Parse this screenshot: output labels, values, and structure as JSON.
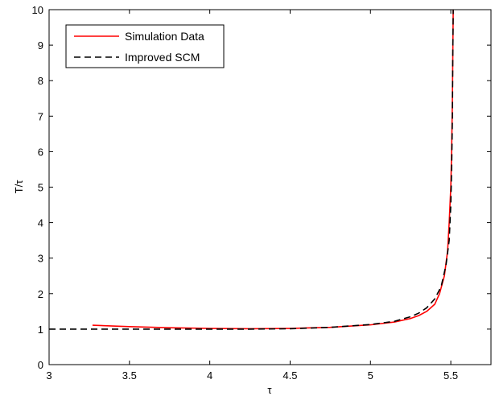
{
  "chart_data": {
    "type": "line",
    "title": "",
    "xlabel": "τ",
    "ylabel": "T/τ",
    "xlim": [
      3,
      5.75
    ],
    "ylim": [
      0,
      10
    ],
    "xticks": [
      3,
      3.5,
      4,
      4.5,
      5,
      5.5
    ],
    "xtick_labels": [
      "3",
      "3.5",
      "4",
      "4.5",
      "5",
      "5.5"
    ],
    "yticks": [
      0,
      1,
      2,
      3,
      4,
      5,
      6,
      7,
      8,
      9,
      10
    ],
    "ytick_labels": [
      "0",
      "1",
      "2",
      "3",
      "4",
      "5",
      "6",
      "7",
      "8",
      "9",
      "10"
    ],
    "grid": false,
    "legend": {
      "placement": "top-left"
    },
    "series": [
      {
        "name": "Simulation Data",
        "color": "#ff0000",
        "style": "solid",
        "points": [
          [
            3.27,
            1.11
          ],
          [
            3.5,
            1.07
          ],
          [
            3.75,
            1.04
          ],
          [
            4.0,
            1.02
          ],
          [
            4.25,
            1.01
          ],
          [
            4.5,
            1.02
          ],
          [
            4.75,
            1.05
          ],
          [
            5.0,
            1.12
          ],
          [
            5.15,
            1.2
          ],
          [
            5.25,
            1.3
          ],
          [
            5.3,
            1.38
          ],
          [
            5.35,
            1.5
          ],
          [
            5.4,
            1.7
          ],
          [
            5.43,
            2.0
          ],
          [
            5.46,
            2.5
          ],
          [
            5.48,
            3.2
          ],
          [
            5.49,
            4.0
          ],
          [
            5.5,
            5.0
          ],
          [
            5.505,
            6.0
          ],
          [
            5.51,
            7.5
          ],
          [
            5.513,
            9.0
          ],
          [
            5.515,
            10.0
          ]
        ]
      },
      {
        "name": "Improved SCM",
        "color": "#000000",
        "style": "dashed",
        "points": [
          [
            3.0,
            1.0
          ],
          [
            3.5,
            1.0
          ],
          [
            4.0,
            1.0
          ],
          [
            4.25,
            1.0
          ],
          [
            4.5,
            1.01
          ],
          [
            4.75,
            1.05
          ],
          [
            5.0,
            1.13
          ],
          [
            5.15,
            1.22
          ],
          [
            5.25,
            1.35
          ],
          [
            5.3,
            1.45
          ],
          [
            5.35,
            1.6
          ],
          [
            5.4,
            1.85
          ],
          [
            5.44,
            2.2
          ],
          [
            5.47,
            2.8
          ],
          [
            5.49,
            3.5
          ],
          [
            5.5,
            4.5
          ],
          [
            5.505,
            5.5
          ],
          [
            5.51,
            7.0
          ],
          [
            5.512,
            8.5
          ],
          [
            5.515,
            10.0
          ]
        ]
      }
    ]
  }
}
